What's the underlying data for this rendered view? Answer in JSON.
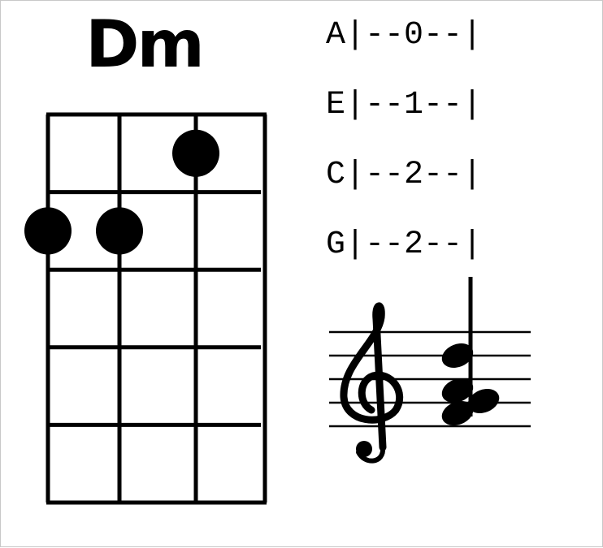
{
  "chord": {
    "name": "Dm",
    "instrument_strings": [
      "G",
      "C",
      "E",
      "A"
    ],
    "frets_shown": 5,
    "fingering": [
      {
        "string": "G",
        "fret": 2
      },
      {
        "string": "C",
        "fret": 2
      },
      {
        "string": "E",
        "fret": 1
      },
      {
        "string": "A",
        "fret": 0
      }
    ]
  },
  "tab": {
    "lines": [
      "A|--0--|",
      "E|--1--|",
      "C|--2--|",
      "G|--2--|"
    ]
  },
  "notation": {
    "clef": "treble-clef-icon",
    "staff_lines": 5,
    "chord_notes": [
      "A4",
      "F4",
      "D4",
      "A4"
    ]
  },
  "colors": {
    "ink": "#000000",
    "background": "#ffffff",
    "frame": "#c8c8c8"
  }
}
